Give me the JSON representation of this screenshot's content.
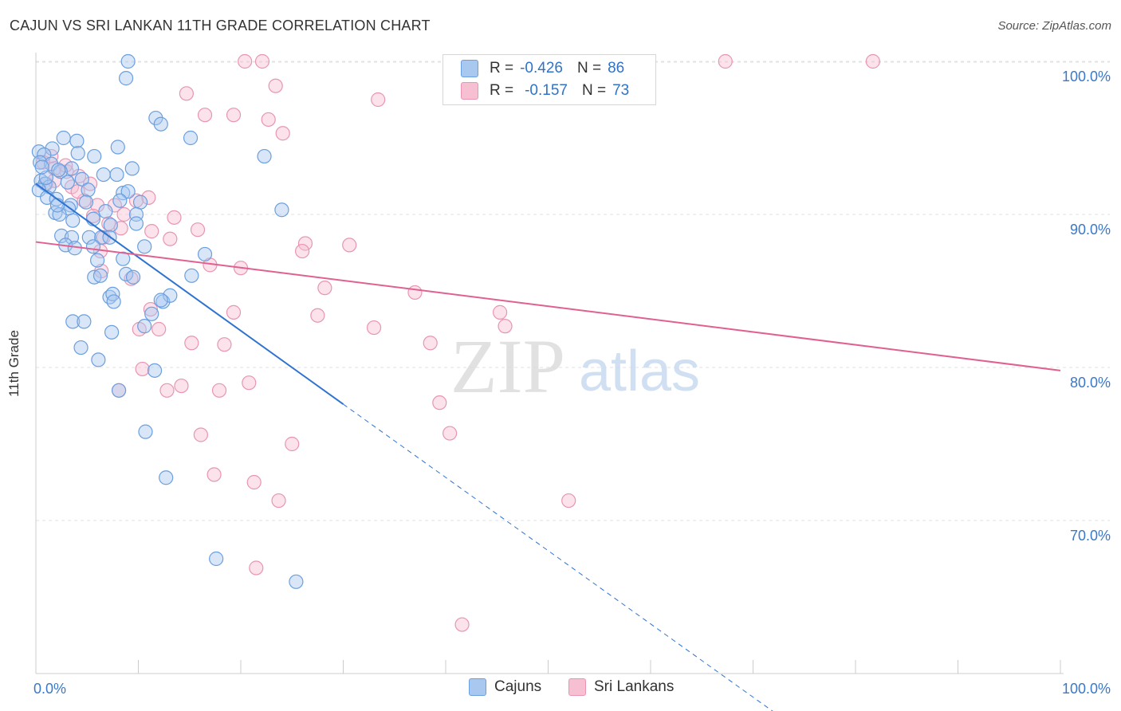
{
  "header": {
    "title": "CAJUN VS SRI LANKAN 11TH GRADE CORRELATION CHART",
    "source": "Source: ZipAtlas.com"
  },
  "watermark": {
    "zip": "ZIP",
    "atlas": "atlas"
  },
  "legend": {
    "rows": [
      {
        "r_label": "R =",
        "r_value": "-0.426",
        "n_label": "N =",
        "n_value": "86"
      },
      {
        "r_label": "R =",
        "r_value": "-0.157",
        "n_label": "N =",
        "n_value": "73"
      }
    ]
  },
  "bottom_legend": {
    "cajuns": "Cajuns",
    "sri_lankans": "Sri Lankans"
  },
  "colors": {
    "cajun_fill": "#a8c8f0",
    "cajun_stroke": "#6a9fe0",
    "cajun_line": "#2f73d0",
    "sri_fill": "#f6bfd2",
    "sri_stroke": "#e895b3",
    "sri_line": "#e06090",
    "grid": "#e2e2e2",
    "tick_label": "#3b78c8"
  },
  "chart_data": {
    "type": "scatter",
    "ylabel": "11th Grade",
    "xlim": [
      0,
      100
    ],
    "ylim": [
      60,
      102
    ],
    "x_tick_labels": [
      "0.0%",
      "100.0%"
    ],
    "y_ticks": [
      70,
      80,
      90,
      100
    ],
    "y_tick_labels": [
      "70.0%",
      "80.0%",
      "90.0%",
      "100.0%"
    ],
    "grid": true,
    "legend_position": "top-center",
    "series": [
      {
        "name": "Cajuns",
        "trend": {
          "x": [
            0,
            30,
            72
          ],
          "y": [
            92.0,
            77.6,
            57.5
          ],
          "solid_until": 30
        },
        "points": [
          [
            9.0,
            100.0
          ],
          [
            8.8,
            98.9
          ],
          [
            11.7,
            96.3
          ],
          [
            12.2,
            95.9
          ],
          [
            15.1,
            95.0
          ],
          [
            2.7,
            95.0
          ],
          [
            4.0,
            94.8
          ],
          [
            1.6,
            94.3
          ],
          [
            8.0,
            94.4
          ],
          [
            0.3,
            94.1
          ],
          [
            0.8,
            93.9
          ],
          [
            4.1,
            94.0
          ],
          [
            5.7,
            93.8
          ],
          [
            22.3,
            93.8
          ],
          [
            0.4,
            93.4
          ],
          [
            1.5,
            93.3
          ],
          [
            3.5,
            93.0
          ],
          [
            9.4,
            93.0
          ],
          [
            2.4,
            92.8
          ],
          [
            6.6,
            92.6
          ],
          [
            7.9,
            92.6
          ],
          [
            4.5,
            92.3
          ],
          [
            0.5,
            92.2
          ],
          [
            0.9,
            92.0
          ],
          [
            1.3,
            91.8
          ],
          [
            0.3,
            91.6
          ],
          [
            5.1,
            91.6
          ],
          [
            8.5,
            91.4
          ],
          [
            9.0,
            91.5
          ],
          [
            1.1,
            91.1
          ],
          [
            2.0,
            91.0
          ],
          [
            8.2,
            90.9
          ],
          [
            10.2,
            90.8
          ],
          [
            3.4,
            90.6
          ],
          [
            3.2,
            90.4
          ],
          [
            6.8,
            90.2
          ],
          [
            9.8,
            90.0
          ],
          [
            1.9,
            90.1
          ],
          [
            2.3,
            90.0
          ],
          [
            24.0,
            90.3
          ],
          [
            5.6,
            89.7
          ],
          [
            3.6,
            89.6
          ],
          [
            9.8,
            89.4
          ],
          [
            7.3,
            89.3
          ],
          [
            2.5,
            88.6
          ],
          [
            3.5,
            88.5
          ],
          [
            5.2,
            88.5
          ],
          [
            6.4,
            88.5
          ],
          [
            7.2,
            88.5
          ],
          [
            2.9,
            88.0
          ],
          [
            3.8,
            87.8
          ],
          [
            5.6,
            87.9
          ],
          [
            10.6,
            87.9
          ],
          [
            16.5,
            87.4
          ],
          [
            6.0,
            87.0
          ],
          [
            8.5,
            87.1
          ],
          [
            15.2,
            86.0
          ],
          [
            5.7,
            85.9
          ],
          [
            8.8,
            86.1
          ],
          [
            9.5,
            85.9
          ],
          [
            7.2,
            84.6
          ],
          [
            7.5,
            84.8
          ],
          [
            7.6,
            84.3
          ],
          [
            12.4,
            84.3
          ],
          [
            13.1,
            84.7
          ],
          [
            12.2,
            84.4
          ],
          [
            11.3,
            83.5
          ],
          [
            3.6,
            83.0
          ],
          [
            4.7,
            83.0
          ],
          [
            10.6,
            82.7
          ],
          [
            7.4,
            82.3
          ],
          [
            4.4,
            81.3
          ],
          [
            6.1,
            80.5
          ],
          [
            11.6,
            79.8
          ],
          [
            8.1,
            78.5
          ],
          [
            10.7,
            75.8
          ],
          [
            12.7,
            72.8
          ],
          [
            17.6,
            67.5
          ],
          [
            25.4,
            66.0
          ],
          [
            1.0,
            92.4
          ],
          [
            2.2,
            92.9
          ],
          [
            0.6,
            93.1
          ],
          [
            4.9,
            90.8
          ],
          [
            2.1,
            90.6
          ],
          [
            6.3,
            86.0
          ],
          [
            3.1,
            92.1
          ]
        ]
      },
      {
        "name": "Sri Lankans",
        "trend": {
          "x": [
            0,
            100
          ],
          "y": [
            88.2,
            79.8
          ]
        },
        "points": [
          [
            20.4,
            100.0
          ],
          [
            22.1,
            100.0
          ],
          [
            67.3,
            100.0
          ],
          [
            81.7,
            100.0
          ],
          [
            23.4,
            98.4
          ],
          [
            14.7,
            97.9
          ],
          [
            33.4,
            97.5
          ],
          [
            16.5,
            96.5
          ],
          [
            19.3,
            96.5
          ],
          [
            22.7,
            96.2
          ],
          [
            24.1,
            95.3
          ],
          [
            1.5,
            93.8
          ],
          [
            0.7,
            93.4
          ],
          [
            1.8,
            93.0
          ],
          [
            3.0,
            92.8
          ],
          [
            4.2,
            92.5
          ],
          [
            1.0,
            92.0
          ],
          [
            5.3,
            92.0
          ],
          [
            1.8,
            92.2
          ],
          [
            3.5,
            91.8
          ],
          [
            11.0,
            91.1
          ],
          [
            4.7,
            90.9
          ],
          [
            9.8,
            90.9
          ],
          [
            6.0,
            90.6
          ],
          [
            7.7,
            90.6
          ],
          [
            5.6,
            89.9
          ],
          [
            13.5,
            89.8
          ],
          [
            7.1,
            89.4
          ],
          [
            8.3,
            89.1
          ],
          [
            11.3,
            88.9
          ],
          [
            15.8,
            89.0
          ],
          [
            6.6,
            88.5
          ],
          [
            13.1,
            88.4
          ],
          [
            26.3,
            88.1
          ],
          [
            30.6,
            88.0
          ],
          [
            26.0,
            87.6
          ],
          [
            6.3,
            87.6
          ],
          [
            17.0,
            86.7
          ],
          [
            20.0,
            86.5
          ],
          [
            9.3,
            85.8
          ],
          [
            6.4,
            86.3
          ],
          [
            28.2,
            85.2
          ],
          [
            37.0,
            84.9
          ],
          [
            11.2,
            83.8
          ],
          [
            19.3,
            83.6
          ],
          [
            27.5,
            83.4
          ],
          [
            45.3,
            83.6
          ],
          [
            10.1,
            82.5
          ],
          [
            12.0,
            82.5
          ],
          [
            33.0,
            82.6
          ],
          [
            45.8,
            82.7
          ],
          [
            15.2,
            81.6
          ],
          [
            18.4,
            81.5
          ],
          [
            38.5,
            81.6
          ],
          [
            10.4,
            79.9
          ],
          [
            12.8,
            78.5
          ],
          [
            14.2,
            78.8
          ],
          [
            17.9,
            78.5
          ],
          [
            20.8,
            79.0
          ],
          [
            8.1,
            78.5
          ],
          [
            39.4,
            77.7
          ],
          [
            16.1,
            75.6
          ],
          [
            25.0,
            75.0
          ],
          [
            40.4,
            75.7
          ],
          [
            17.4,
            73.0
          ],
          [
            21.3,
            72.5
          ],
          [
            23.7,
            71.3
          ],
          [
            52.0,
            71.3
          ],
          [
            21.5,
            66.9
          ],
          [
            41.6,
            63.2
          ],
          [
            2.9,
            93.2
          ],
          [
            8.6,
            90.0
          ],
          [
            4.1,
            91.5
          ]
        ]
      }
    ]
  }
}
